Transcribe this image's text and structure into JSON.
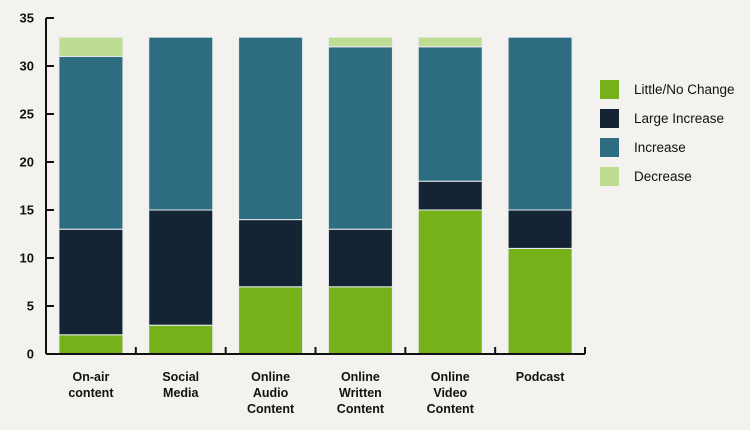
{
  "chart_data": {
    "type": "bar",
    "stacked": true,
    "categories": [
      [
        "On-air",
        "content"
      ],
      [
        "Social",
        "Media"
      ],
      [
        "Online",
        "Audio",
        "Content"
      ],
      [
        "Online",
        "Written",
        "Content"
      ],
      [
        "Online",
        "Video",
        "Content"
      ],
      [
        "Podcast"
      ]
    ],
    "series": [
      {
        "name": "Little/No Change",
        "color": "#77b11a",
        "values": [
          2,
          3,
          7,
          7,
          15,
          11
        ]
      },
      {
        "name": "Large Increase",
        "color": "#142434",
        "values": [
          11,
          12,
          7,
          6,
          3,
          4
        ]
      },
      {
        "name": "Increase",
        "color": "#2e6c82",
        "values": [
          18,
          18,
          19,
          19,
          14,
          18
        ]
      },
      {
        "name": "Decrease",
        "color": "#bedc92",
        "values": [
          2,
          0,
          0,
          1,
          1,
          0
        ]
      }
    ],
    "ylim": [
      0,
      35
    ],
    "yticks": [
      0,
      5,
      10,
      15,
      20,
      25,
      30,
      35
    ],
    "legend_order": [
      0,
      1,
      2,
      3
    ],
    "legend_position": "right",
    "grid": false
  }
}
